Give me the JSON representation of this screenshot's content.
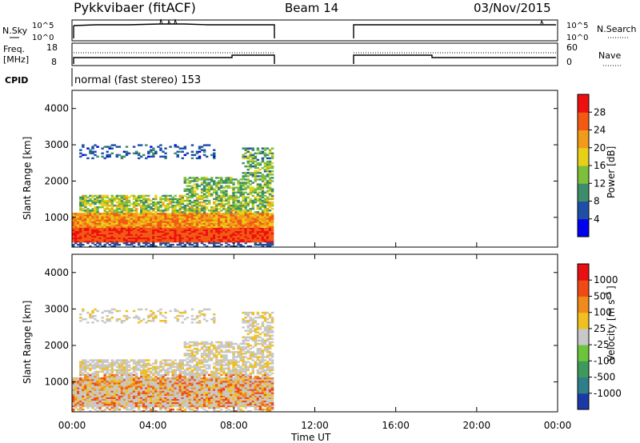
{
  "header": {
    "station": "Pykkvibaer (fitACF)",
    "beam": "Beam 14",
    "date": "03/Nov/2015"
  },
  "strip_labels": {
    "nsky": "N.Sky",
    "nsearch": "N.Search",
    "freq_top": "Freq.",
    "freq_unit": "[MHz]",
    "nave": "Nave",
    "cpid": "CPID",
    "cpid_text": "normal (fast stereo) 153",
    "noise_ticks": [
      "10^5",
      "10^0"
    ],
    "freq_ticks": [
      "18",
      "8"
    ],
    "nave_ticks": [
      "60",
      "0"
    ]
  },
  "chart_data": [
    {
      "type": "heatmap",
      "title": "Power",
      "ylabel": "Slant Range [km]",
      "xlabel": "",
      "ylim": [
        180,
        4500
      ],
      "yticks": [
        1000,
        2000,
        3000,
        4000
      ],
      "colorbar": {
        "label": "Power [dB]",
        "ticks": [
          "28",
          "24",
          "20",
          "16",
          "12",
          "8",
          "4"
        ],
        "range": [
          0,
          32
        ],
        "colors": [
          "#0000ee",
          "#1e4fa6",
          "#3d8c6a",
          "#7dbf3a",
          "#e8d018",
          "#f29a1a",
          "#f25a14",
          "#ee1010"
        ]
      }
    },
    {
      "type": "heatmap",
      "title": "Velocity",
      "ylabel": "Slant Range [km]",
      "xlabel": "Time UT",
      "ylim": [
        180,
        4500
      ],
      "yticks": [
        1000,
        2000,
        3000,
        4000
      ],
      "x_tick_labels": [
        "00:00",
        "04:00",
        "08:00",
        "12:00",
        "16:00",
        "20:00",
        "00:00"
      ],
      "colorbar": {
        "label": "Velocity [m s^-1]",
        "ticks": [
          "1000",
          "500",
          "100",
          "25",
          "-25",
          "-100",
          "-500",
          "-1000"
        ],
        "colors": [
          "#1a3aa8",
          "#2e7f8a",
          "#3e9a5a",
          "#6cc43a",
          "#c8c8c8",
          "#f0c020",
          "#f08a1a",
          "#f04a14",
          "#e81010"
        ]
      },
      "gap": {
        "start_hour": 10.0,
        "end_hour": 14.0
      }
    }
  ]
}
